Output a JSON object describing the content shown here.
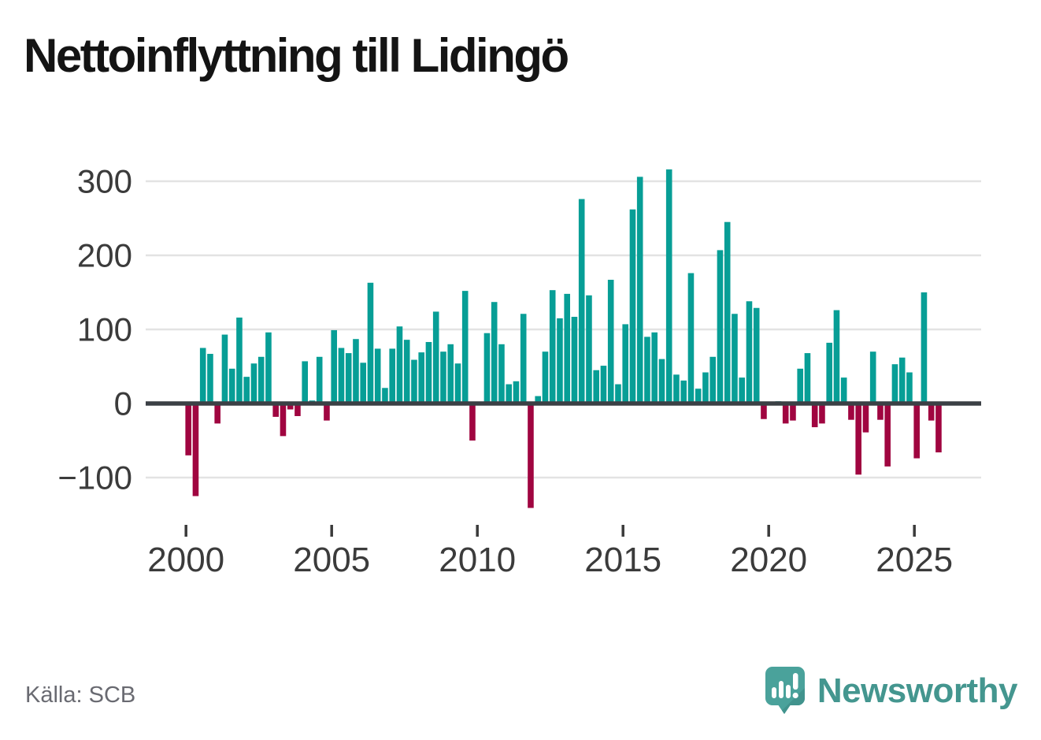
{
  "title": "Nettoinflyttning till Lidingö",
  "source": {
    "label": "Källa: SCB"
  },
  "logo": {
    "text": "Newsworthy",
    "icon": "speech-bubble-bar-chart-exclamation"
  },
  "colors": {
    "positive": "#079e96",
    "negative": "#a00540",
    "grid": "#e3e3e3",
    "axis": "#3b4045",
    "tick_label": "#3b3b3b",
    "source_text": "#696a71",
    "logo_teal": "#44968f",
    "logo_icon": "#4aa29b",
    "title_text": "#141414",
    "background": "#ffffff"
  },
  "chart_data": {
    "type": "bar",
    "title": "Nettoinflyttning till Lidingö",
    "xlabel": "",
    "ylabel": "",
    "frequency": "quarterly",
    "start_year": 2000,
    "x_tick_labels": [
      "2000",
      "2005",
      "2010",
      "2015",
      "2020",
      "2025"
    ],
    "y_ticks": [
      300,
      200,
      100,
      0,
      -100
    ],
    "y_tick_labels": [
      "300",
      "200",
      "100",
      "0",
      "−100"
    ],
    "ylim": [
      -150,
      330
    ],
    "grid": true,
    "legend": false,
    "bar_color_rule": "teal if value >= 0, crimson if value < 0",
    "values": [
      -70,
      -125,
      75,
      67,
      -27,
      93,
      47,
      116,
      36,
      54,
      63,
      96,
      -18,
      -44,
      -8,
      -17,
      57,
      4,
      63,
      -23,
      99,
      75,
      68,
      87,
      55,
      163,
      74,
      21,
      74,
      104,
      86,
      59,
      69,
      83,
      124,
      70,
      80,
      54,
      152,
      -50,
      0,
      95,
      137,
      80,
      26,
      30,
      121,
      -141,
      10,
      70,
      153,
      115,
      148,
      117,
      276,
      146,
      45,
      51,
      167,
      26,
      107,
      262,
      306,
      90,
      96,
      60,
      316,
      39,
      31,
      176,
      20,
      42,
      63,
      207,
      245,
      121,
      35,
      138,
      129,
      -21,
      0,
      3,
      -27,
      -23,
      47,
      68,
      -32,
      -27,
      82,
      126,
      35,
      -22,
      -96,
      -39,
      70,
      -22,
      -85,
      53,
      62,
      42,
      -74,
      150,
      -23,
      -66
    ]
  }
}
